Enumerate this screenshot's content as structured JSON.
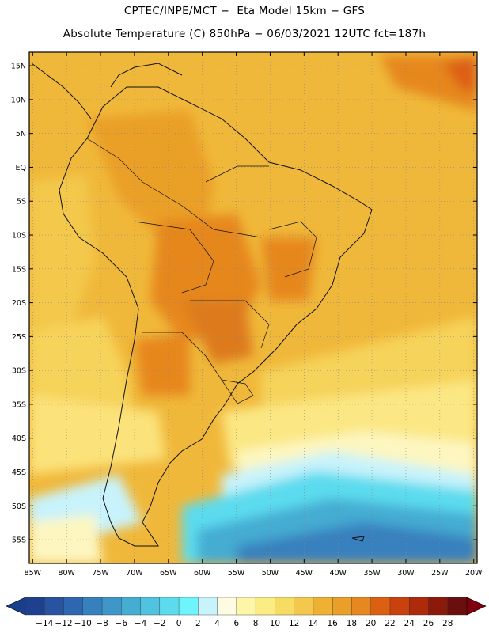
{
  "title_line1": "CPTEC/INPE/MCT −  Eta Model 15km − GFS",
  "title_line2": "Absolute Temperature (C) 850hPa − 06/03/2021 12UTC fct=187h",
  "map": {
    "lat_labels": [
      "15N",
      "10N",
      "5N",
      "EQ",
      "5S",
      "10S",
      "15S",
      "20S",
      "25S",
      "30S",
      "35S",
      "40S",
      "45S",
      "50S",
      "55S"
    ],
    "lat_values": [
      15,
      10,
      5,
      0,
      -5,
      -10,
      -15,
      -20,
      -25,
      -30,
      -35,
      -40,
      -45,
      -50,
      -55
    ],
    "lon_labels": [
      "85W",
      "80W",
      "75W",
      "70W",
      "65W",
      "60W",
      "55W",
      "50W",
      "45W",
      "40W",
      "35W",
      "30W",
      "25W",
      "20W"
    ],
    "lon_values": [
      -85,
      -80,
      -75,
      -70,
      -65,
      -60,
      -55,
      -50,
      -45,
      -40,
      -35,
      -30,
      -25,
      -20
    ],
    "extent": {
      "lon_min": -85.5,
      "lon_max": -19.5,
      "lat_min": -58.5,
      "lat_max": 17
    }
  },
  "colorbar": {
    "labels": [
      "-14",
      "-12",
      "-10",
      "-8",
      "-6",
      "-4",
      "-2",
      "0",
      "2",
      "4",
      "6",
      "8",
      "10",
      "12",
      "14",
      "16",
      "18",
      "20",
      "22",
      "24",
      "26",
      "28"
    ],
    "colors": [
      "#1f3f8f",
      "#2753a0",
      "#2e67b0",
      "#3780be",
      "#3e97c8",
      "#45acd2",
      "#4fc3e0",
      "#5cdbee",
      "#6ef4fb",
      "#c8f3fb",
      "#fffbe3",
      "#fdf6a6",
      "#fbec83",
      "#f7dc63",
      "#f3c84c",
      "#efb133",
      "#ea9f28",
      "#e6871f",
      "#dd5f12",
      "#c9410c",
      "#ad2a0a",
      "#8c1a0a",
      "#6a0e0e"
    ],
    "low_arrow_color": "#183f8c",
    "high_arrow_color": "#800010"
  },
  "colors": {
    "ocean_north": "#f0b83a",
    "land_core": "#ea9f28",
    "hot_spot": "#e2861e",
    "subtropic": "#f6d35a",
    "cool_sea": "#fdf5b0",
    "cold_sea": "#3e97c8"
  }
}
